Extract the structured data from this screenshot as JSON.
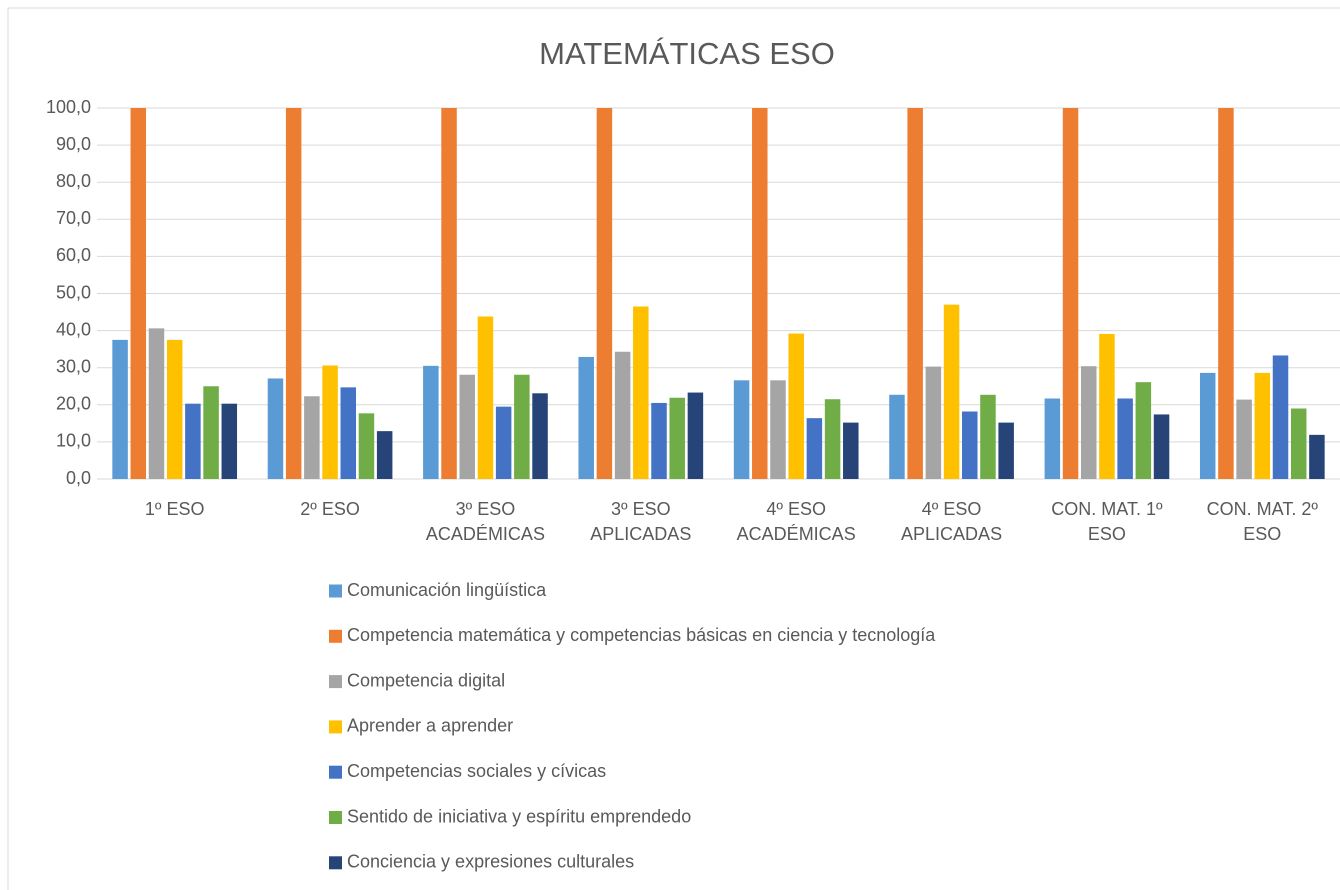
{
  "chart_data": {
    "type": "bar",
    "title": "MATEMÁTICAS ESO",
    "categories": [
      "1º ESO",
      "2º ESO",
      "3º ESO ACADÉMICAS",
      "3º ESO APLICADAS",
      "4º ESO ACADÉMICAS",
      "4º ESO APLICADAS",
      "CON. MAT. 1º ESO",
      "CON. MAT. 2º ESO"
    ],
    "series": [
      {
        "name": "Comunicación lingüística",
        "color": "#5b9bd5",
        "values": [
          37.5,
          27.1,
          30.5,
          32.9,
          26.6,
          22.7,
          21.7,
          28.6
        ]
      },
      {
        "name": "Competencia matemática y competencias básicas en ciencia y tecnología",
        "color": "#ed7d31",
        "values": [
          100,
          100,
          100,
          100,
          100,
          100,
          100,
          100
        ]
      },
      {
        "name": "Competencia digital",
        "color": "#a5a5a5",
        "values": [
          40.6,
          22.3,
          28.1,
          34.3,
          26.6,
          30.3,
          30.4,
          21.4
        ]
      },
      {
        "name": "Aprender a aprender",
        "color": "#ffc000",
        "values": [
          37.5,
          30.6,
          43.8,
          46.5,
          39.2,
          47.0,
          39.1,
          28.6
        ]
      },
      {
        "name": "Competencias sociales y cívicas",
        "color": "#4472c4",
        "values": [
          20.3,
          24.7,
          19.5,
          20.5,
          16.4,
          18.2,
          21.7,
          33.3
        ]
      },
      {
        "name": "Sentido de iniciativa y espíritu emprendedo",
        "color": "#70ad47",
        "values": [
          25.0,
          17.7,
          28.1,
          21.9,
          21.5,
          22.7,
          26.1,
          19.0
        ]
      },
      {
        "name": "Conciencia y expresiones culturales",
        "color": "#264478",
        "values": [
          20.3,
          12.9,
          23.1,
          23.3,
          15.2,
          15.2,
          17.4,
          11.9
        ]
      }
    ],
    "ylim": [
      0,
      100
    ],
    "yticks": [
      {
        "value": 0,
        "label": "0,0"
      },
      {
        "value": 10,
        "label": "10,0"
      },
      {
        "value": 20,
        "label": "20,0"
      },
      {
        "value": 30,
        "label": "30,0"
      },
      {
        "value": 40,
        "label": "40,0"
      },
      {
        "value": 50,
        "label": "50,0"
      },
      {
        "value": 60,
        "label": "60,0"
      },
      {
        "value": 70,
        "label": "70,0"
      },
      {
        "value": 80,
        "label": "80,0"
      },
      {
        "value": 90,
        "label": "90,0"
      },
      {
        "value": 100,
        "label": "100,0"
      }
    ],
    "grid": true
  }
}
